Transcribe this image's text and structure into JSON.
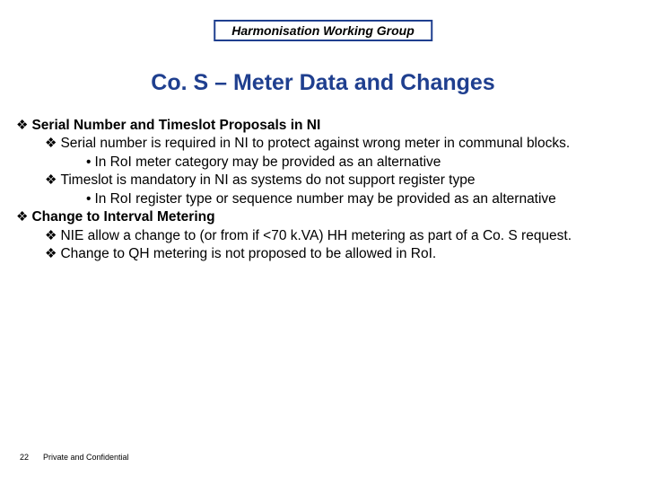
{
  "colors": {
    "title": "#1f3f8f",
    "text": "#000000",
    "border": "#1f3f8f"
  },
  "header": {
    "label": "Harmonisation Working Group"
  },
  "title": "Co. S – Meter Data and Changes",
  "bullets": {
    "b0": "Serial Number and Timeslot Proposals in NI",
    "b1": "Serial number is required in NI to protect against wrong meter in communal blocks.",
    "b2": "In RoI meter category may be provided as an alternative",
    "b3": "Timeslot is mandatory in NI as systems do not support register type",
    "b4": "In RoI register type or sequence number may be provided as an alternative",
    "b5": "Change to Interval Metering",
    "b6": "NIE allow a change to (or from if <70 k.VA) HH metering as part of a Co. S request.",
    "b7": "Change to QH metering is not proposed to be allowed in RoI."
  },
  "footer": {
    "page": "22",
    "confidential": "Private and Confidential"
  }
}
